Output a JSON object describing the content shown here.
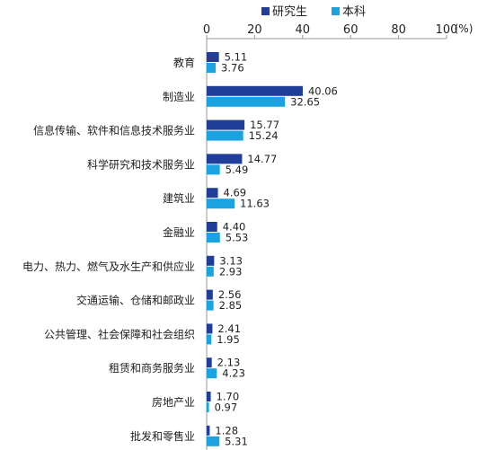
{
  "chart_data": {
    "type": "bar",
    "orientation": "horizontal",
    "categories": [
      "教育",
      "制造业",
      "信息传输、软件和信息技术服务业",
      "科学研究和技术服务业",
      "建筑业",
      "金融业",
      "电力、热力、燃气及水生产和供应业",
      "交通运输、仓储和邮政业",
      "公共管理、社会保障和社会组织",
      "租赁和商务服务业",
      "房地产业",
      "批发和零售业"
    ],
    "series": [
      {
        "name": "研究生",
        "color": "#1f3d99",
        "values": [
          5.11,
          40.06,
          15.77,
          14.77,
          4.69,
          4.4,
          3.13,
          2.56,
          2.41,
          2.13,
          1.7,
          1.28
        ],
        "labels": [
          "5.11",
          "40.06",
          "15.77",
          "14.77",
          "4.69",
          "4.40",
          "3.13",
          "2.56",
          "2.41",
          "2.13",
          "1.70",
          "1.28"
        ]
      },
      {
        "name": "本科",
        "color": "#1aa3e0",
        "values": [
          3.76,
          32.65,
          15.24,
          5.49,
          11.63,
          5.53,
          2.93,
          2.85,
          1.95,
          4.23,
          0.97,
          5.31
        ],
        "labels": [
          "3.76",
          "32.65",
          "15.24",
          "5.49",
          "11.63",
          "5.53",
          "2.93",
          "2.85",
          "1.95",
          "4.23",
          "0.97",
          "5.31"
        ]
      }
    ],
    "x_ticks": [
      0,
      20,
      40,
      60,
      80,
      100
    ],
    "x_tick_labels": [
      "0",
      "20",
      "40",
      "60",
      "80",
      "100"
    ],
    "xlim": [
      0,
      100
    ],
    "x_unit_label": "(%)",
    "x_axis_position": "top",
    "legend_position": "top",
    "grid": false
  }
}
